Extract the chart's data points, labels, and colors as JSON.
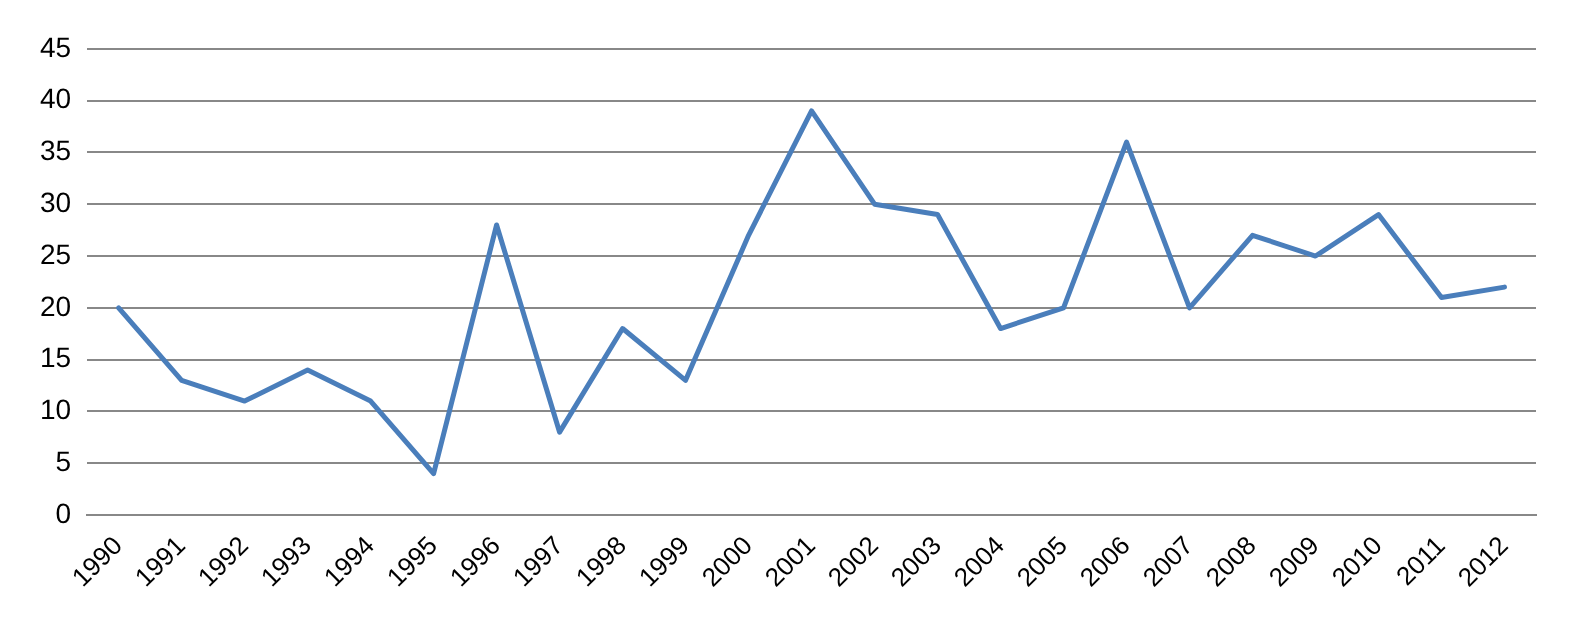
{
  "chart_data": {
    "type": "line",
    "categories": [
      "1990",
      "1991",
      "1992",
      "1993",
      "1994",
      "1995",
      "1996",
      "1997",
      "1998",
      "1999",
      "2000",
      "2001",
      "2002",
      "2003",
      "2004",
      "2005",
      "2006",
      "2007",
      "2008",
      "2009",
      "2010",
      "2011",
      "2012"
    ],
    "series": [
      {
        "color": "#4a7ebb",
        "values": [
          20,
          13,
          11,
          14,
          11,
          4,
          28,
          8,
          18,
          13,
          27,
          39,
          30,
          29,
          18,
          20,
          36,
          20,
          27,
          25,
          29,
          21,
          22
        ]
      }
    ],
    "ylim": [
      0,
      45
    ],
    "yticks": [
      0,
      5,
      10,
      15,
      20,
      25,
      30,
      35,
      40,
      45
    ],
    "grid": "y",
    "legend": false,
    "marker": "none",
    "line_style": "solid"
  }
}
